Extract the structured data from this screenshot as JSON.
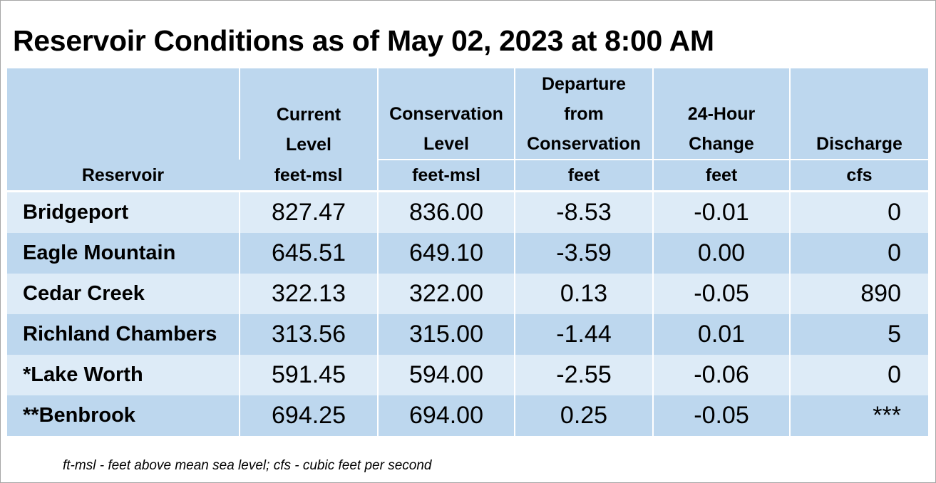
{
  "title": "Reservoir Conditions as of May 02, 2023 at 8:00 AM",
  "columns": [
    {
      "label_lines": [
        "Reservoir"
      ],
      "unit": ""
    },
    {
      "label_lines": [
        "Current",
        "Level"
      ],
      "unit": "feet-msl"
    },
    {
      "label_lines": [
        "Conservation",
        "Level"
      ],
      "unit": "feet-msl"
    },
    {
      "label_lines": [
        "Departure",
        "from",
        "Conservation"
      ],
      "unit": "feet"
    },
    {
      "label_lines": [
        "24-Hour",
        "Change"
      ],
      "unit": "feet"
    },
    {
      "label_lines": [
        "Discharge"
      ],
      "unit": "cfs"
    }
  ],
  "rows": [
    {
      "name": "Bridgeport",
      "current": "827.47",
      "conservation": "836.00",
      "departure": "-8.53",
      "change": "-0.01",
      "discharge": "0"
    },
    {
      "name": "Eagle Mountain",
      "current": "645.51",
      "conservation": "649.10",
      "departure": "-3.59",
      "change": "0.00",
      "discharge": "0"
    },
    {
      "name": "Cedar Creek",
      "current": "322.13",
      "conservation": "322.00",
      "departure": "0.13",
      "change": "-0.05",
      "discharge": "890"
    },
    {
      "name": "Richland Chambers",
      "current": "313.56",
      "conservation": "315.00",
      "departure": "-1.44",
      "change": "0.01",
      "discharge": "5"
    },
    {
      "name": "*Lake Worth",
      "current": "591.45",
      "conservation": "594.00",
      "departure": "-2.55",
      "change": "-0.06",
      "discharge": "0"
    },
    {
      "name": "**Benbrook",
      "current": "694.25",
      "conservation": "694.00",
      "departure": "0.25",
      "change": "-0.05",
      "discharge": "***"
    }
  ],
  "footnote": "ft-msl - feet above mean sea level; cfs - cubic feet per second",
  "colors": {
    "header_bg": "#bdd7ee",
    "row_light": "#ddebf7",
    "row_dark": "#bdd7ee"
  }
}
